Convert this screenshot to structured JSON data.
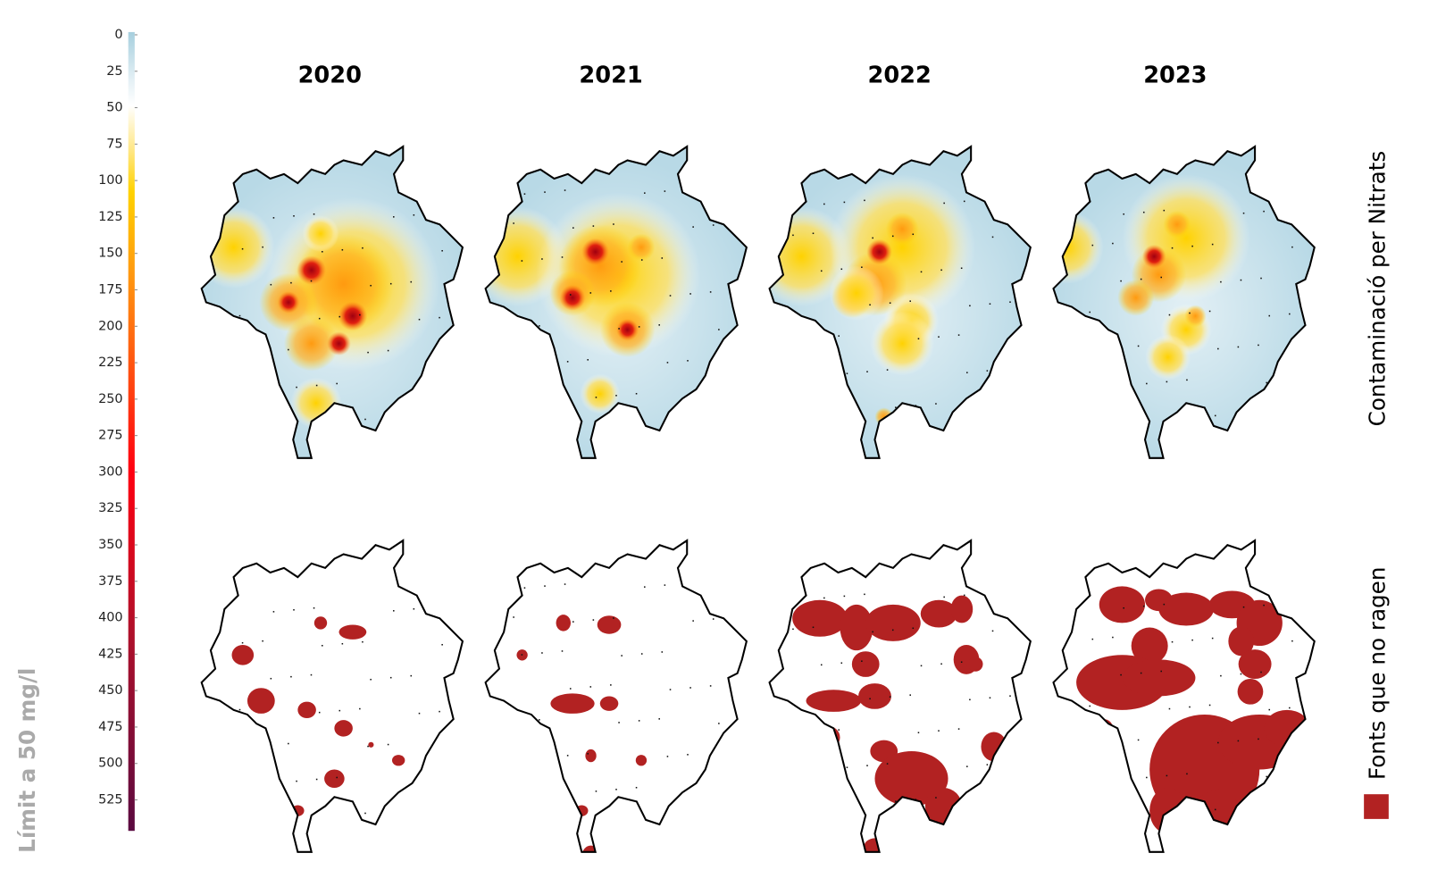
{
  "colorbar": {
    "lim": [
      0,
      545
    ],
    "ticks": [
      0,
      25,
      50,
      75,
      100,
      125,
      150,
      175,
      200,
      225,
      250,
      275,
      300,
      325,
      350,
      375,
      400,
      425,
      450,
      475,
      500,
      525
    ]
  },
  "years": [
    "2020",
    "2021",
    "2022",
    "2023"
  ],
  "rows": [
    "Contaminació per Nitrats",
    "Fonts que no ragen"
  ],
  "side_label": "Límit a 50 mg/l"
}
